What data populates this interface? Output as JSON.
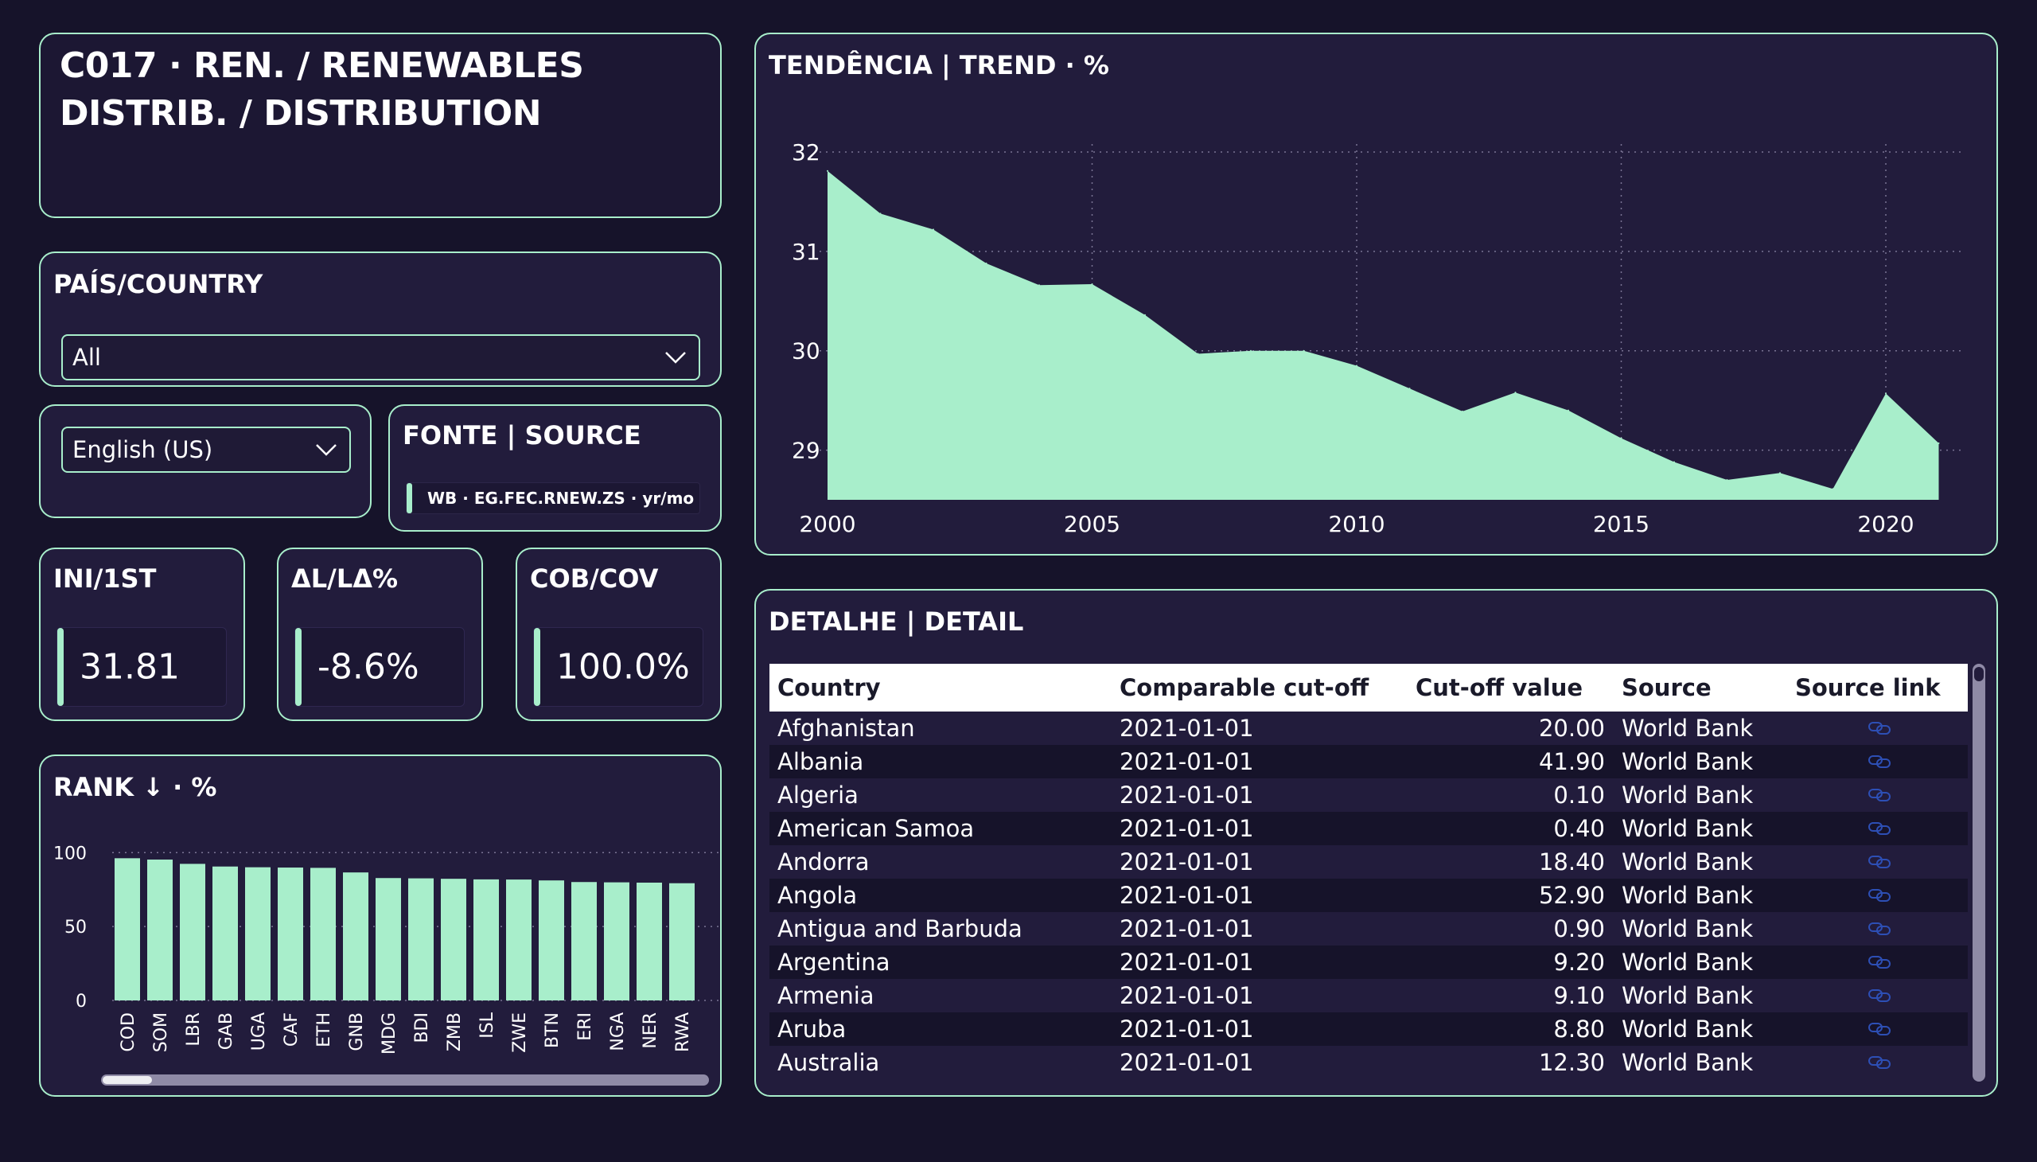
{
  "header": {
    "title_line1": "C017 · REN. / RENEWABLES",
    "title_line2": "DISTRIB. / DISTRIBUTION"
  },
  "country_slicer": {
    "title": "PAÍS/COUNTRY",
    "selected": "All",
    "icon": "chevron-down-icon"
  },
  "language_slicer": {
    "selected": "English (US)",
    "icon": "chevron-down-icon"
  },
  "source_card": {
    "title": "FONTE | SOURCE",
    "tag": "WB · EG.FEC.RNEW.ZS · yr/mo"
  },
  "kpis": [
    {
      "title": "INI/1ST",
      "value": "31.81"
    },
    {
      "title": "ΔL/LΔ%",
      "value": "-8.6%"
    },
    {
      "title": "COB/COV",
      "value": "100.0%"
    }
  ],
  "rank": {
    "title": "RANK ↓ · %",
    "chart_data": {
      "type": "bar",
      "categories": [
        "COD",
        "SOM",
        "LBR",
        "GAB",
        "UGA",
        "CAF",
        "ETH",
        "GNB",
        "MDG",
        "BDI",
        "ZMB",
        "ISL",
        "ZWE",
        "BTN",
        "ERI",
        "NGA",
        "NER",
        "RWA"
      ],
      "values": [
        96.2,
        95.3,
        92.4,
        90.6,
        90.1,
        89.9,
        89.7,
        86.6,
        82.8,
        82.6,
        82.3,
        81.9,
        81.8,
        81.2,
        80.1,
        79.9,
        79.7,
        79.3
      ],
      "yticks": [
        "0",
        "50",
        "100"
      ],
      "ylim": [
        0,
        105
      ],
      "color": "#a8eecb"
    }
  },
  "trend": {
    "title": "TENDÊNCIA | TREND · %",
    "chart_data": {
      "type": "area",
      "x": [
        2000,
        2001,
        2002,
        2003,
        2004,
        2005,
        2006,
        2007,
        2008,
        2009,
        2010,
        2011,
        2012,
        2013,
        2014,
        2015,
        2016,
        2017,
        2018,
        2019,
        2020,
        2021
      ],
      "values": [
        31.81,
        31.38,
        31.22,
        30.88,
        30.66,
        30.67,
        30.36,
        29.97,
        30.0,
        30.0,
        29.85,
        29.62,
        29.39,
        29.58,
        29.4,
        29.12,
        28.88,
        28.7,
        28.77,
        28.61,
        29.57,
        29.07
      ],
      "xticks": [
        "2000",
        "2005",
        "2010",
        "2015",
        "2020"
      ],
      "yticks": [
        "29",
        "30",
        "31",
        "32"
      ],
      "ylim": [
        28.5,
        32
      ],
      "xlim": [
        2000,
        2021
      ],
      "grid": true,
      "color": "#a8eecb"
    }
  },
  "detail": {
    "title": "DETALHE | DETAIL",
    "columns": [
      "Country",
      "Comparable cut-off",
      "Cut-off value",
      "Source",
      "Source link"
    ],
    "rows": [
      {
        "country": "Afghanistan",
        "cutoff": "2021-01-01",
        "value": "20.00",
        "source": "World Bank"
      },
      {
        "country": "Albania",
        "cutoff": "2021-01-01",
        "value": "41.90",
        "source": "World Bank"
      },
      {
        "country": "Algeria",
        "cutoff": "2021-01-01",
        "value": "0.10",
        "source": "World Bank"
      },
      {
        "country": "American Samoa",
        "cutoff": "2021-01-01",
        "value": "0.40",
        "source": "World Bank"
      },
      {
        "country": "Andorra",
        "cutoff": "2021-01-01",
        "value": "18.40",
        "source": "World Bank"
      },
      {
        "country": "Angola",
        "cutoff": "2021-01-01",
        "value": "52.90",
        "source": "World Bank"
      },
      {
        "country": "Antigua and Barbuda",
        "cutoff": "2021-01-01",
        "value": "0.90",
        "source": "World Bank"
      },
      {
        "country": "Argentina",
        "cutoff": "2021-01-01",
        "value": "9.20",
        "source": "World Bank"
      },
      {
        "country": "Armenia",
        "cutoff": "2021-01-01",
        "value": "9.10",
        "source": "World Bank"
      },
      {
        "country": "Aruba",
        "cutoff": "2021-01-01",
        "value": "8.80",
        "source": "World Bank"
      },
      {
        "country": "Australia",
        "cutoff": "2021-01-01",
        "value": "12.30",
        "source": "World Bank"
      }
    ],
    "link_icon": "link-icon"
  }
}
